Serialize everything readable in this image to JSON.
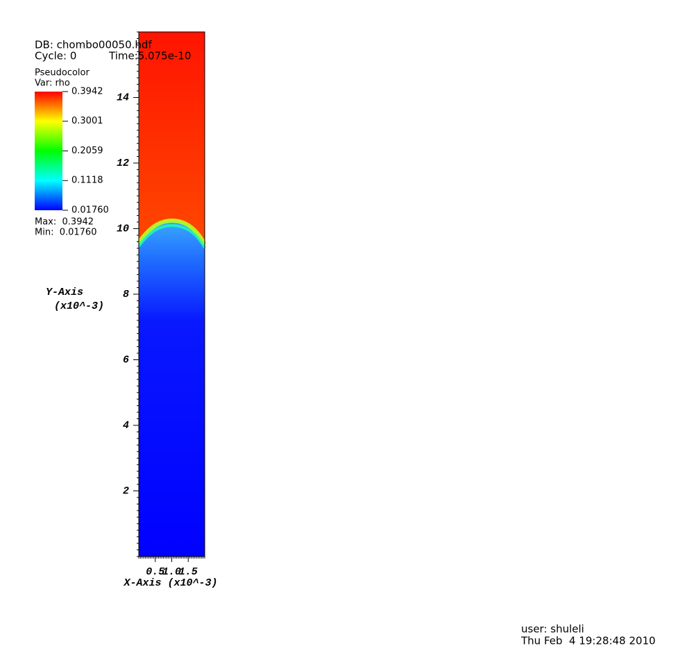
{
  "header": {
    "db": "DB: chombo00050.hdf",
    "cycle": "Cycle: 0",
    "time": "Time:5.075e-10"
  },
  "legend": {
    "plot": "Pseudocolor",
    "var": "Var: rho",
    "clim": [
      0.0176,
      0.3942
    ],
    "ticks": [
      0.3942,
      0.3001,
      0.2059,
      0.1118,
      {
        "value": 0.0176,
        "label": "0.01760"
      }
    ],
    "max": "Max:  0.3942",
    "min": "Min:  0.01760"
  },
  "chart_data": {
    "type": "pseudocolor",
    "xlabel": "X-Axis (x10^-3)",
    "ylabel": [
      "Y-Axis",
      "(x10^-3)"
    ],
    "xlim": [
      0,
      2
    ],
    "xticks": [
      0.5,
      {
        "value": 1.0,
        "label": "1.0"
      },
      1.5
    ],
    "ylim": [
      0,
      16
    ],
    "yticks": [
      2,
      4,
      6,
      8,
      10,
      12,
      14
    ]
  },
  "footer": {
    "user": "user: shuleli",
    "date": "Thu Feb  4 19:28:48 2010"
  }
}
